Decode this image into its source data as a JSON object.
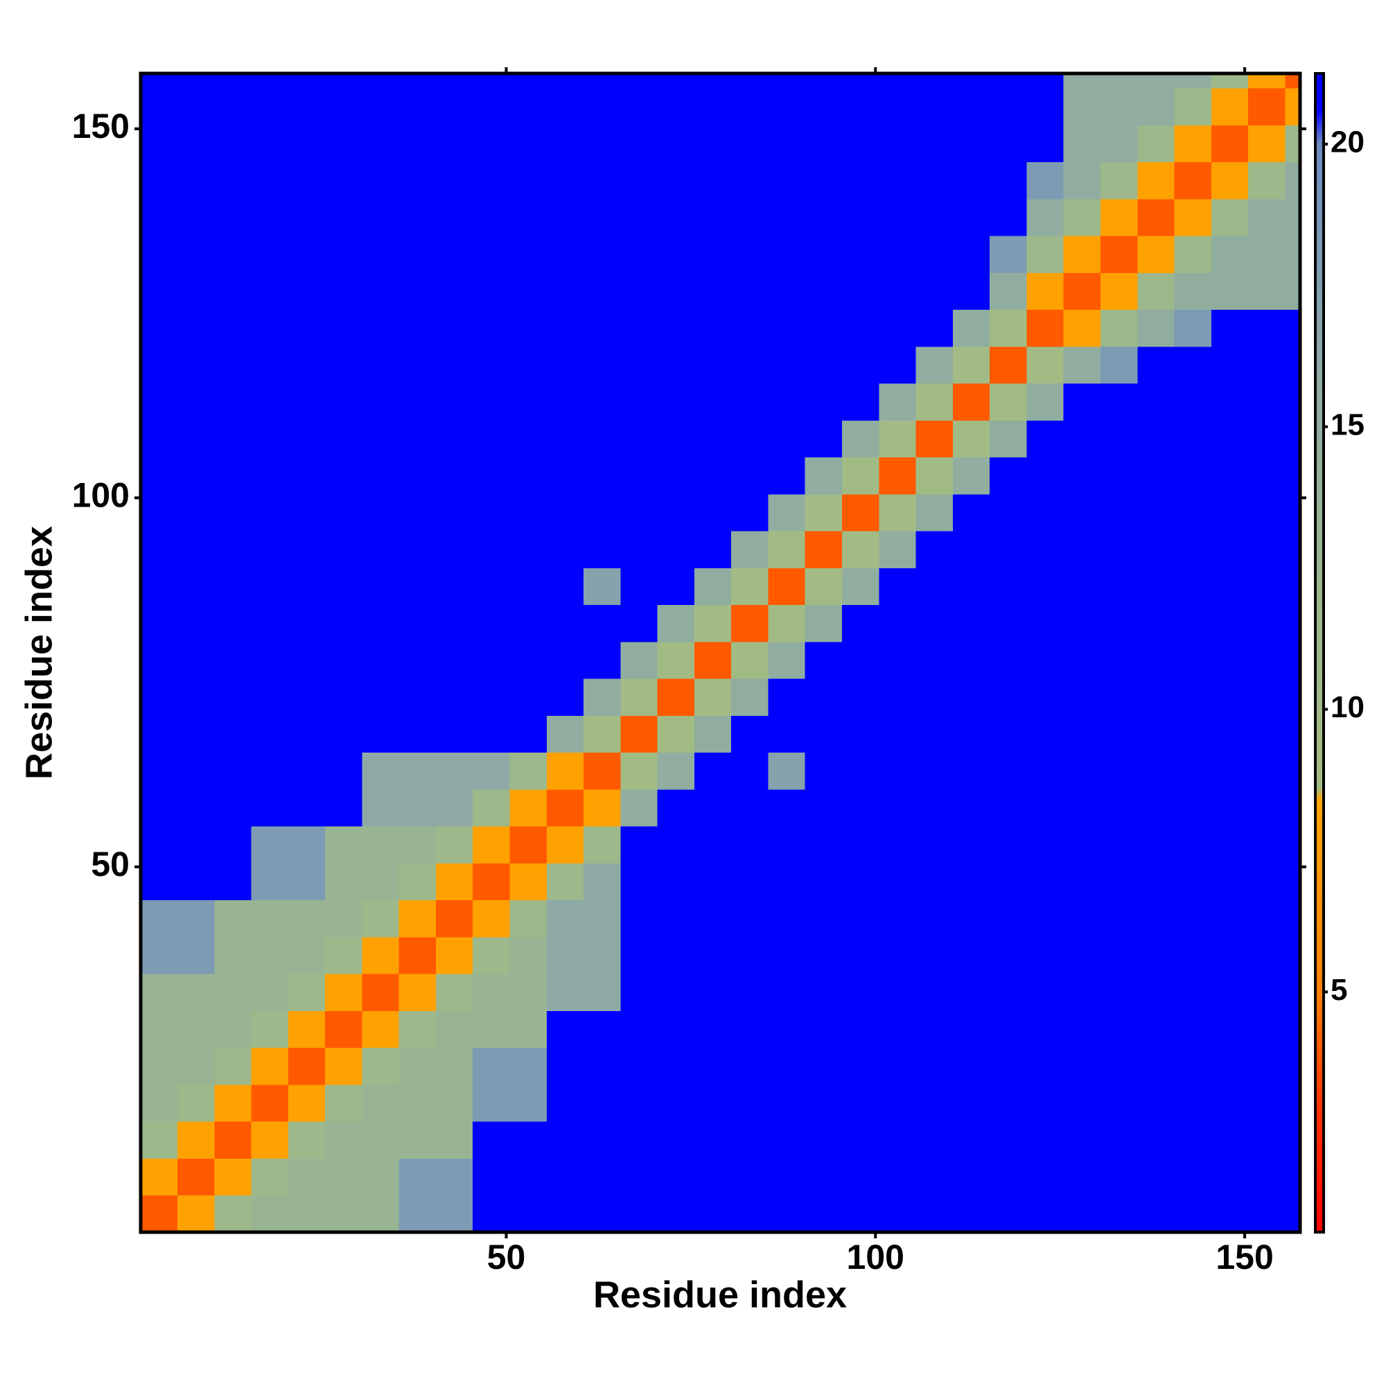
{
  "chart_data": {
    "type": "heatmap",
    "x_label": "Residue index",
    "y_label": "Residue index",
    "xlim": [
      0.5,
      157.5
    ],
    "ylim": [
      0.5,
      157.5
    ],
    "xticks": [
      50,
      100,
      150
    ],
    "yticks": [
      50,
      100,
      150
    ],
    "x": [
      3,
      8,
      13,
      18,
      23,
      28,
      33,
      38,
      43,
      48,
      53,
      58,
      63,
      68,
      73,
      78,
      83,
      88,
      93,
      98,
      103,
      108,
      113,
      118,
      123,
      128,
      133,
      138,
      143,
      148,
      153,
      158
    ],
    "y": [
      3,
      8,
      13,
      18,
      23,
      28,
      33,
      38,
      43,
      48,
      53,
      58,
      63,
      68,
      73,
      78,
      83,
      88,
      93,
      98,
      103,
      108,
      113,
      118,
      123,
      128,
      133,
      138,
      143,
      148,
      153,
      158
    ],
    "z": [
      [
        4,
        8,
        11,
        13,
        13,
        13,
        13,
        18,
        18,
        21,
        21,
        21,
        21,
        21,
        21,
        21,
        21,
        21,
        21,
        21,
        21,
        21,
        21,
        21,
        21,
        21,
        21,
        21,
        21,
        21,
        21,
        21
      ],
      [
        8,
        4,
        8,
        11,
        13,
        13,
        13,
        18,
        18,
        21,
        21,
        21,
        21,
        21,
        21,
        21,
        21,
        21,
        21,
        21,
        21,
        21,
        21,
        21,
        21,
        21,
        21,
        21,
        21,
        21,
        21,
        21
      ],
      [
        11,
        8,
        4,
        8,
        11,
        13,
        13,
        13,
        13,
        21,
        21,
        21,
        21,
        21,
        21,
        21,
        21,
        21,
        21,
        21,
        21,
        21,
        21,
        21,
        21,
        21,
        21,
        21,
        21,
        21,
        21,
        21
      ],
      [
        13,
        11,
        8,
        4,
        8,
        11,
        13,
        13,
        13,
        18,
        18,
        21,
        21,
        21,
        21,
        21,
        21,
        21,
        21,
        21,
        21,
        21,
        21,
        21,
        21,
        21,
        21,
        21,
        21,
        21,
        21,
        21
      ],
      [
        13,
        13,
        11,
        8,
        4,
        8,
        11,
        13,
        13,
        18,
        18,
        21,
        21,
        21,
        21,
        21,
        21,
        21,
        21,
        21,
        21,
        21,
        21,
        21,
        21,
        21,
        21,
        21,
        21,
        21,
        21,
        21
      ],
      [
        13,
        13,
        13,
        11,
        8,
        4,
        8,
        11,
        13,
        13,
        13,
        21,
        21,
        21,
        21,
        21,
        21,
        21,
        21,
        21,
        21,
        21,
        21,
        21,
        21,
        21,
        21,
        21,
        21,
        21,
        21,
        21
      ],
      [
        13,
        13,
        13,
        13,
        11,
        8,
        4,
        8,
        11,
        13,
        13,
        16,
        16,
        21,
        21,
        21,
        21,
        21,
        21,
        21,
        21,
        21,
        21,
        21,
        21,
        21,
        21,
        21,
        21,
        21,
        21,
        21
      ],
      [
        18,
        18,
        13,
        13,
        13,
        11,
        8,
        4,
        8,
        11,
        13,
        16,
        16,
        21,
        21,
        21,
        21,
        21,
        21,
        21,
        21,
        21,
        21,
        21,
        21,
        21,
        21,
        21,
        21,
        21,
        21,
        21
      ],
      [
        18,
        18,
        13,
        13,
        13,
        13,
        11,
        8,
        4,
        8,
        11,
        16,
        16,
        21,
        21,
        21,
        21,
        21,
        21,
        21,
        21,
        21,
        21,
        21,
        21,
        21,
        21,
        21,
        21,
        21,
        21,
        21
      ],
      [
        21,
        21,
        21,
        18,
        18,
        13,
        13,
        11,
        8,
        4,
        8,
        11,
        16,
        21,
        21,
        21,
        21,
        21,
        21,
        21,
        21,
        21,
        21,
        21,
        21,
        21,
        21,
        21,
        21,
        21,
        21,
        21
      ],
      [
        21,
        21,
        21,
        18,
        18,
        13,
        13,
        13,
        11,
        8,
        4,
        8,
        11,
        21,
        21,
        21,
        21,
        21,
        21,
        21,
        21,
        21,
        21,
        21,
        21,
        21,
        21,
        21,
        21,
        21,
        21,
        21
      ],
      [
        21,
        21,
        21,
        21,
        21,
        21,
        16,
        16,
        16,
        11,
        8,
        4,
        8,
        15,
        21,
        21,
        21,
        21,
        21,
        21,
        21,
        21,
        21,
        21,
        21,
        21,
        21,
        21,
        21,
        21,
        21,
        21
      ],
      [
        21,
        21,
        21,
        21,
        21,
        21,
        16,
        16,
        16,
        16,
        11,
        8,
        4,
        9,
        15,
        21,
        21,
        17,
        21,
        21,
        21,
        21,
        21,
        21,
        21,
        21,
        21,
        21,
        21,
        21,
        21,
        21
      ],
      [
        21,
        21,
        21,
        21,
        21,
        21,
        21,
        21,
        21,
        21,
        21,
        15,
        9,
        4,
        9,
        15,
        21,
        21,
        21,
        21,
        21,
        21,
        21,
        21,
        21,
        21,
        21,
        21,
        21,
        21,
        21,
        21
      ],
      [
        21,
        21,
        21,
        21,
        21,
        21,
        21,
        21,
        21,
        21,
        21,
        21,
        15,
        9,
        4,
        9,
        15,
        21,
        21,
        21,
        21,
        21,
        21,
        21,
        21,
        21,
        21,
        21,
        21,
        21,
        21,
        21
      ],
      [
        21,
        21,
        21,
        21,
        21,
        21,
        21,
        21,
        21,
        21,
        21,
        21,
        21,
        15,
        9,
        4,
        9,
        15,
        21,
        21,
        21,
        21,
        21,
        21,
        21,
        21,
        21,
        21,
        21,
        21,
        21,
        21
      ],
      [
        21,
        21,
        21,
        21,
        21,
        21,
        21,
        21,
        21,
        21,
        21,
        21,
        21,
        21,
        15,
        9,
        4,
        9,
        15,
        21,
        21,
        21,
        21,
        21,
        21,
        21,
        21,
        21,
        21,
        21,
        21,
        21
      ],
      [
        21,
        21,
        21,
        21,
        21,
        21,
        21,
        21,
        21,
        21,
        21,
        21,
        17,
        21,
        21,
        15,
        9,
        4,
        9,
        15,
        21,
        21,
        21,
        21,
        21,
        21,
        21,
        21,
        21,
        21,
        21,
        21
      ],
      [
        21,
        21,
        21,
        21,
        21,
        21,
        21,
        21,
        21,
        21,
        21,
        21,
        21,
        21,
        21,
        21,
        15,
        9,
        4,
        9,
        15,
        21,
        21,
        21,
        21,
        21,
        21,
        21,
        21,
        21,
        21,
        21
      ],
      [
        21,
        21,
        21,
        21,
        21,
        21,
        21,
        21,
        21,
        21,
        21,
        21,
        21,
        21,
        21,
        21,
        21,
        15,
        9,
        4,
        9,
        15,
        21,
        21,
        21,
        21,
        21,
        21,
        21,
        21,
        21,
        21
      ],
      [
        21,
        21,
        21,
        21,
        21,
        21,
        21,
        21,
        21,
        21,
        21,
        21,
        21,
        21,
        21,
        21,
        21,
        21,
        15,
        9,
        4,
        9,
        15,
        21,
        21,
        21,
        21,
        21,
        21,
        21,
        21,
        21
      ],
      [
        21,
        21,
        21,
        21,
        21,
        21,
        21,
        21,
        21,
        21,
        21,
        21,
        21,
        21,
        21,
        21,
        21,
        21,
        21,
        15,
        9,
        4,
        9,
        15,
        21,
        21,
        21,
        21,
        21,
        21,
        21,
        21
      ],
      [
        21,
        21,
        21,
        21,
        21,
        21,
        21,
        21,
        21,
        21,
        21,
        21,
        21,
        21,
        21,
        21,
        21,
        21,
        21,
        21,
        15,
        9,
        4,
        9,
        15,
        21,
        21,
        21,
        21,
        21,
        21,
        21
      ],
      [
        21,
        21,
        21,
        21,
        21,
        21,
        21,
        21,
        21,
        21,
        21,
        21,
        21,
        21,
        21,
        21,
        21,
        21,
        21,
        21,
        21,
        15,
        9,
        4,
        9,
        15,
        18,
        21,
        21,
        21,
        21,
        21
      ],
      [
        21,
        21,
        21,
        21,
        21,
        21,
        21,
        21,
        21,
        21,
        21,
        21,
        21,
        21,
        21,
        21,
        21,
        21,
        21,
        21,
        21,
        21,
        15,
        9,
        4,
        8,
        11,
        15,
        18,
        21,
        21,
        21
      ],
      [
        21,
        21,
        21,
        21,
        21,
        21,
        21,
        21,
        21,
        21,
        21,
        21,
        21,
        21,
        21,
        21,
        21,
        21,
        21,
        21,
        21,
        21,
        21,
        15,
        8,
        4,
        8,
        11,
        15,
        15,
        15,
        15
      ],
      [
        21,
        21,
        21,
        21,
        21,
        21,
        21,
        21,
        21,
        21,
        21,
        21,
        21,
        21,
        21,
        21,
        21,
        21,
        21,
        21,
        21,
        21,
        21,
        18,
        11,
        8,
        4,
        8,
        11,
        15,
        15,
        15
      ],
      [
        21,
        21,
        21,
        21,
        21,
        21,
        21,
        21,
        21,
        21,
        21,
        21,
        21,
        21,
        21,
        21,
        21,
        21,
        21,
        21,
        21,
        21,
        21,
        21,
        15,
        11,
        8,
        4,
        8,
        11,
        15,
        15
      ],
      [
        21,
        21,
        21,
        21,
        21,
        21,
        21,
        21,
        21,
        21,
        21,
        21,
        21,
        21,
        21,
        21,
        21,
        21,
        21,
        21,
        21,
        21,
        21,
        21,
        18,
        15,
        11,
        8,
        4,
        8,
        11,
        15
      ],
      [
        21,
        21,
        21,
        21,
        21,
        21,
        21,
        21,
        21,
        21,
        21,
        21,
        21,
        21,
        21,
        21,
        21,
        21,
        21,
        21,
        21,
        21,
        21,
        21,
        21,
        15,
        15,
        11,
        8,
        4,
        8,
        11
      ],
      [
        21,
        21,
        21,
        21,
        21,
        21,
        21,
        21,
        21,
        21,
        21,
        21,
        21,
        21,
        21,
        21,
        21,
        21,
        21,
        21,
        21,
        21,
        21,
        21,
        21,
        15,
        15,
        15,
        11,
        8,
        4,
        8
      ],
      [
        21,
        21,
        21,
        21,
        21,
        21,
        21,
        21,
        21,
        21,
        21,
        21,
        21,
        21,
        21,
        21,
        21,
        21,
        21,
        21,
        21,
        21,
        21,
        21,
        21,
        15,
        15,
        15,
        15,
        11,
        8,
        4
      ]
    ],
    "colorbar": {
      "lim": [
        0.75,
        21.25
      ],
      "ticks": [
        5,
        10,
        15,
        20
      ]
    },
    "colorscale": [
      [
        0.75,
        "#ff0000"
      ],
      [
        3,
        "#ff3300"
      ],
      [
        5,
        "#ff8000"
      ],
      [
        8.4,
        "#ffa500"
      ],
      [
        8.6,
        "#a3bb84"
      ],
      [
        12,
        "#9bb78c"
      ],
      [
        16,
        "#8ea9a6"
      ],
      [
        20,
        "#6b8cc0"
      ],
      [
        20.6,
        "#0000ff"
      ]
    ]
  }
}
